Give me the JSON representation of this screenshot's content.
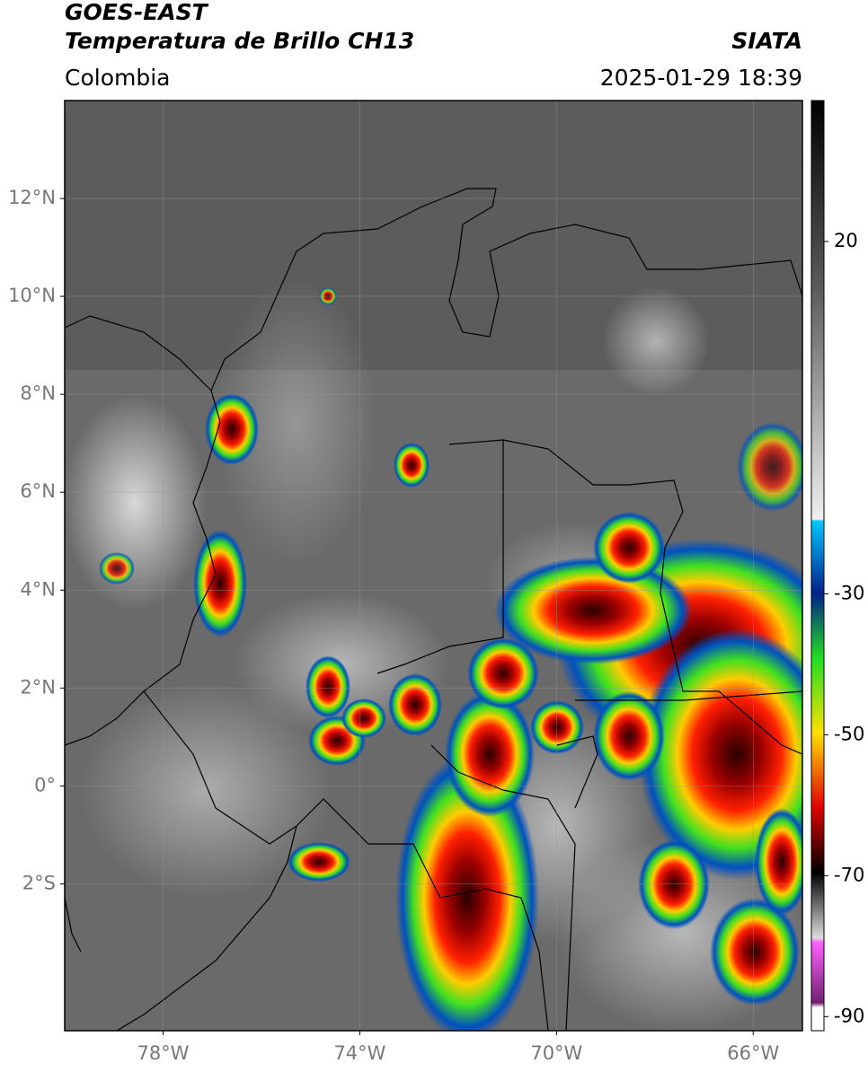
{
  "map": {
    "title": [
      "GOES-EAST",
      "Temperatura de Brillo CH13"
    ],
    "source": "SIATA",
    "region": "Colombia",
    "timestamp": "2025-01-29 18:39",
    "lonlim": [
      -80,
      -65
    ],
    "latlim": [
      -5,
      14
    ],
    "lonticks": [
      {
        "value": -78,
        "label": "78°W"
      },
      {
        "value": -74,
        "label": "74°W"
      },
      {
        "value": -70,
        "label": "70°W"
      },
      {
        "value": -66,
        "label": "66°W"
      }
    ],
    "latticks": [
      {
        "value": 12,
        "label": "12°N"
      },
      {
        "value": 10,
        "label": "10°N"
      },
      {
        "value": 8,
        "label": "8°N"
      },
      {
        "value": 6,
        "label": "6°N"
      },
      {
        "value": 4,
        "label": "4°N"
      },
      {
        "value": 2,
        "label": "2°N"
      },
      {
        "value": 0,
        "label": "0°"
      },
      {
        "value": -2,
        "label": "2°S"
      }
    ],
    "colorbar": {
      "lim": [
        -92,
        40
      ],
      "ticks": [
        20,
        -30,
        -50,
        -70,
        -90
      ]
    }
  }
}
